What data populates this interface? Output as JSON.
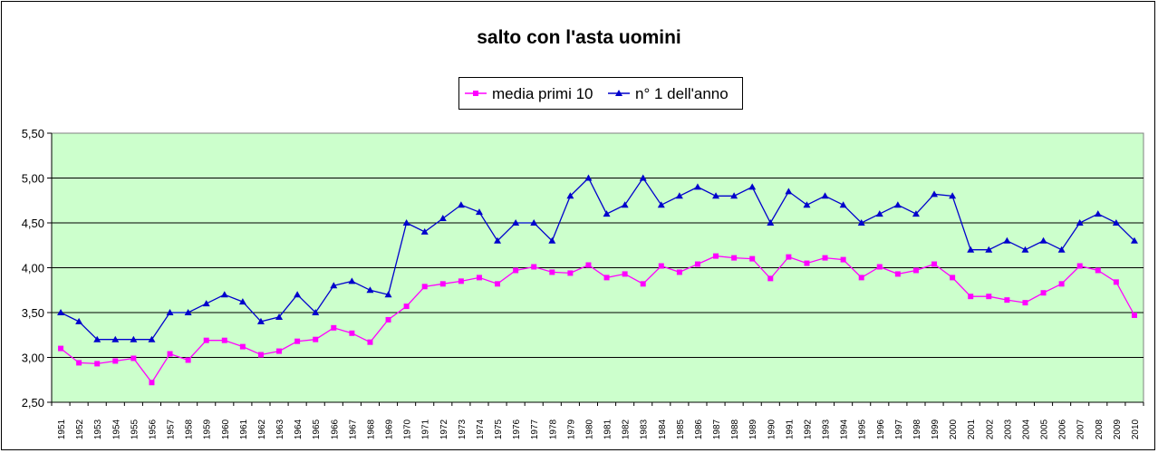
{
  "chart_data": {
    "type": "line",
    "title": "salto con l'asta uomini",
    "xlabel": "",
    "ylabel": "",
    "ylim": [
      2.5,
      5.5
    ],
    "yticks": [
      "2,50",
      "3,00",
      "3,50",
      "4,00",
      "4,50",
      "5,00",
      "5,50"
    ],
    "ytick_values": [
      2.5,
      3.0,
      3.5,
      4.0,
      4.5,
      5.0,
      5.5
    ],
    "grid": true,
    "legend_position": "top-center",
    "plot_background": "#ccffcc",
    "x": [
      "1951",
      "1952",
      "1953",
      "1954",
      "1955",
      "1956",
      "1957",
      "1958",
      "1959",
      "1960",
      "1961",
      "1962",
      "1963",
      "1964",
      "1965",
      "1966",
      "1967",
      "1968",
      "1969",
      "1970",
      "1971",
      "1972",
      "1973",
      "1974",
      "1975",
      "1976",
      "1977",
      "1978",
      "1979",
      "1980",
      "1981",
      "1982",
      "1983",
      "1984",
      "1985",
      "1986",
      "1987",
      "1988",
      "1989",
      "1990",
      "1991",
      "1992",
      "1993",
      "1994",
      "1995",
      "1996",
      "1997",
      "1998",
      "1999",
      "2000",
      "2001",
      "2002",
      "2003",
      "2004",
      "2005",
      "2006",
      "2007",
      "2008",
      "2009",
      "2010"
    ],
    "series": [
      {
        "name": "media primi 10",
        "color": "#ff00ff",
        "marker": "square",
        "values": [
          3.1,
          2.94,
          2.93,
          2.96,
          2.99,
          2.72,
          3.04,
          2.97,
          3.19,
          3.19,
          3.12,
          3.03,
          3.07,
          3.18,
          3.2,
          3.33,
          3.27,
          3.17,
          3.42,
          3.57,
          3.79,
          3.82,
          3.85,
          3.89,
          3.82,
          3.97,
          4.01,
          3.95,
          3.94,
          4.03,
          3.89,
          3.93,
          3.82,
          4.02,
          3.95,
          4.04,
          4.13,
          4.11,
          4.1,
          3.88,
          4.12,
          4.05,
          4.11,
          4.09,
          3.89,
          4.01,
          3.93,
          3.97,
          4.04,
          3.89,
          3.68,
          3.68,
          3.64,
          3.61,
          3.72,
          3.82,
          4.02,
          3.97,
          3.84,
          3.47
        ]
      },
      {
        "name": "n° 1 dell'anno",
        "color": "#0000cc",
        "marker": "triangle",
        "values": [
          3.5,
          3.4,
          3.2,
          3.2,
          3.2,
          3.2,
          3.5,
          3.5,
          3.6,
          3.7,
          3.62,
          3.4,
          3.45,
          3.7,
          3.5,
          3.8,
          3.85,
          3.75,
          3.7,
          4.5,
          4.4,
          4.55,
          4.7,
          4.62,
          4.3,
          4.5,
          4.5,
          4.3,
          4.8,
          5.0,
          4.6,
          4.7,
          5.0,
          4.7,
          4.8,
          4.9,
          4.8,
          4.8,
          4.9,
          4.5,
          4.85,
          4.7,
          4.8,
          4.7,
          4.5,
          4.6,
          4.7,
          4.6,
          4.82,
          4.8,
          4.2,
          4.2,
          4.3,
          4.2,
          4.3,
          4.2,
          4.5,
          4.6,
          4.5,
          4.3
        ]
      }
    ]
  }
}
